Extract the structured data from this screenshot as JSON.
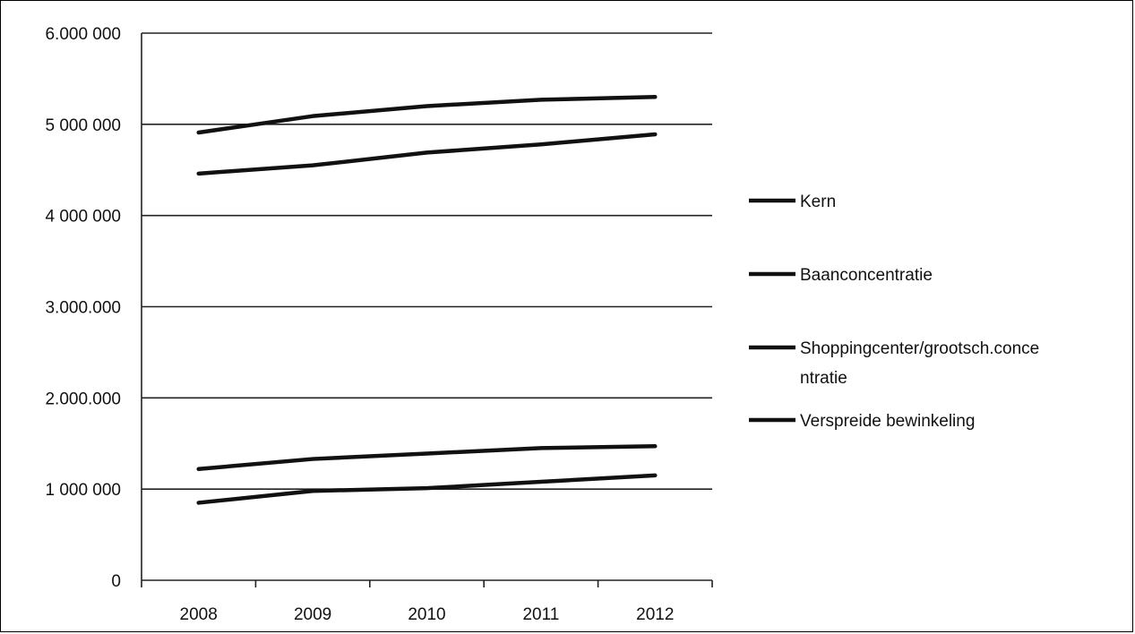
{
  "chart_data": {
    "type": "line",
    "title": "",
    "xlabel": "",
    "ylabel": "",
    "x": [
      "2008",
      "2009",
      "2010",
      "2011",
      "2012"
    ],
    "y_ticks": [
      {
        "value": 0,
        "label": "0"
      },
      {
        "value": 1000000,
        "label": "1 000 000"
      },
      {
        "value": 2000000,
        "label": "2.000.000"
      },
      {
        "value": 3000000,
        "label": "3.000.000"
      },
      {
        "value": 4000000,
        "label": "4 000 000"
      },
      {
        "value": 5000000,
        "label": "5 000 000"
      },
      {
        "value": 6000000,
        "label": "6.000 000"
      }
    ],
    "ylim": [
      0,
      6000000
    ],
    "grid": "horizontal",
    "legend_position": "right",
    "series": [
      {
        "name": "Kern",
        "color": "#111111",
        "values": [
          4910000,
          5090000,
          5200000,
          5270000,
          5300000
        ]
      },
      {
        "name": "Baanconcentratie",
        "color": "#111111",
        "values": [
          4460000,
          4550000,
          4690000,
          4780000,
          4890000
        ]
      },
      {
        "name": "Shoppingcenter/grootsch.concentratie",
        "color": "#111111",
        "legend_lines": [
          "Shoppingcenter/grootsch.conce",
          "ntratie"
        ],
        "values": [
          1220000,
          1330000,
          1390000,
          1450000,
          1470000
        ]
      },
      {
        "name": "Verspreide bewinkeling",
        "color": "#111111",
        "values": [
          850000,
          980000,
          1010000,
          1080000,
          1150000
        ]
      }
    ]
  }
}
